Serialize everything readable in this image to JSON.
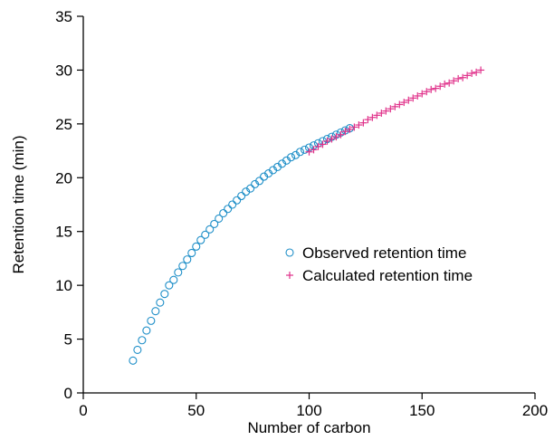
{
  "chart_data": {
    "type": "scatter",
    "title": "",
    "xlabel": "Number of carbon",
    "ylabel": "Retention time (min)",
    "xlim": [
      0,
      200
    ],
    "ylim": [
      0,
      35
    ],
    "xticks": [
      0,
      50,
      100,
      150,
      200
    ],
    "yticks": [
      0,
      5,
      10,
      15,
      20,
      25,
      30,
      35
    ],
    "grid": false,
    "legend_position": "center-right",
    "series": [
      {
        "name": "Observed retention time",
        "marker": "circle",
        "color": "#1f8fc8",
        "x": [
          22,
          24,
          26,
          28,
          30,
          32,
          34,
          36,
          38,
          40,
          42,
          44,
          46,
          48,
          50,
          52,
          54,
          56,
          58,
          60,
          62,
          64,
          66,
          68,
          70,
          72,
          74,
          76,
          78,
          80,
          82,
          84,
          86,
          88,
          90,
          92,
          94,
          96,
          98,
          100,
          102,
          104,
          106,
          108,
          110,
          112,
          114,
          116,
          118
        ],
        "y": [
          3.0,
          4.0,
          4.9,
          5.8,
          6.7,
          7.6,
          8.4,
          9.2,
          10.0,
          10.5,
          11.2,
          11.8,
          12.4,
          13.0,
          13.6,
          14.2,
          14.7,
          15.2,
          15.7,
          16.2,
          16.7,
          17.1,
          17.5,
          17.9,
          18.3,
          18.7,
          19.0,
          19.4,
          19.7,
          20.1,
          20.4,
          20.7,
          21.0,
          21.3,
          21.6,
          21.9,
          22.1,
          22.4,
          22.6,
          22.8,
          23.0,
          23.2,
          23.4,
          23.6,
          23.8,
          24.0,
          24.2,
          24.4,
          24.6
        ]
      },
      {
        "name": "Calculated retention time",
        "marker": "plus",
        "color": "#e0318a",
        "x": [
          100,
          102,
          104,
          106,
          108,
          110,
          112,
          114,
          116,
          118,
          120,
          122,
          124,
          126,
          128,
          130,
          132,
          134,
          136,
          138,
          140,
          142,
          144,
          146,
          148,
          150,
          152,
          154,
          156,
          158,
          160,
          162,
          164,
          166,
          168,
          170,
          172,
          174,
          176
        ],
        "y": [
          22.4,
          22.6,
          22.9,
          23.1,
          23.4,
          23.6,
          23.8,
          24.0,
          24.3,
          24.5,
          24.7,
          24.9,
          25.1,
          25.4,
          25.6,
          25.8,
          26.0,
          26.2,
          26.4,
          26.6,
          26.8,
          27.0,
          27.2,
          27.4,
          27.6,
          27.8,
          28.0,
          28.2,
          28.3,
          28.5,
          28.7,
          28.8,
          29.0,
          29.2,
          29.3,
          29.5,
          29.7,
          29.8,
          30.0
        ]
      }
    ]
  }
}
